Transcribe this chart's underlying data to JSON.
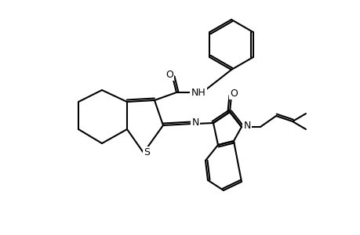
{
  "background_color": "#ffffff",
  "line_color": "#000000",
  "line_width": 1.5,
  "figsize": [
    4.6,
    3.0
  ],
  "dpi": 100,
  "atoms": {
    "S_label": "S",
    "N_imine_label": "N",
    "N_indole_label": "N",
    "O_amide_label": "O",
    "O_oxindole_label": "O",
    "NH_label": "NH"
  }
}
